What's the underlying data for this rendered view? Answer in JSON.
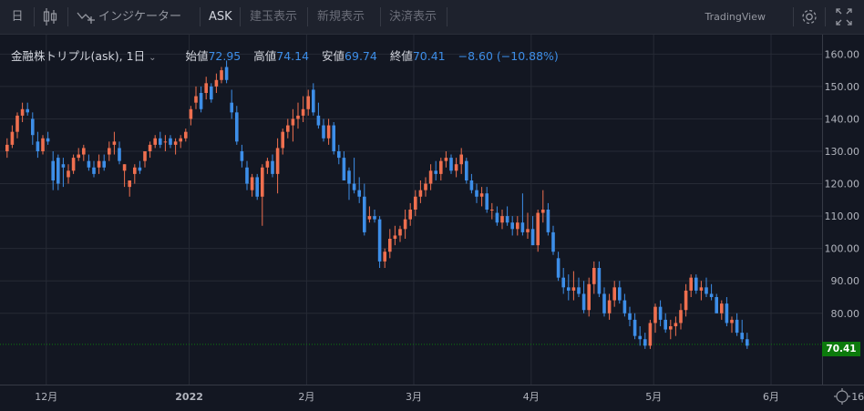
{
  "toolbar": {
    "period": "日",
    "indicators": "インジケーター",
    "ask": "ASK",
    "btn1": "建玉表示",
    "btn2": "新規表示",
    "btn3": "決済表示",
    "brand": "TradingView"
  },
  "legend": {
    "symbol": "金融株トリプル(ask), 1日",
    "open_label": "始値",
    "open": "72.95",
    "high_label": "高値",
    "high": "74.14",
    "low_label": "安値",
    "low": "69.74",
    "close_label": "終値",
    "close": "70.41",
    "change": "−8.60 (−10.88%)"
  },
  "colors": {
    "up": "#ef6f4f",
    "down": "#3d8ee8",
    "last": "#0c7a0c"
  },
  "chart_data": {
    "type": "candlestick",
    "ylim": [
      58,
      166
    ],
    "y_ticks": [
      "160.00",
      "150.00",
      "140.00",
      "130.00",
      "120.00",
      "110.00",
      "100.00",
      "90.00",
      "80.00"
    ],
    "y_tick_values": [
      160,
      150,
      140,
      130,
      120,
      110,
      100,
      90,
      80
    ],
    "x_labels": [
      {
        "text": "12月",
        "bar": 8
      },
      {
        "text": "2022",
        "bar": 36
      },
      {
        "text": "2月",
        "bar": 59
      },
      {
        "text": "3月",
        "bar": 80
      },
      {
        "text": "4月",
        "bar": 103
      },
      {
        "text": "5月",
        "bar": 127
      },
      {
        "text": "6月",
        "bar": 150
      },
      {
        "text": "16",
        "bar": 167
      }
    ],
    "last_price": "70.41",
    "last_value": 70.41,
    "candles": [
      [
        130,
        134,
        128,
        132
      ],
      [
        132,
        138,
        131,
        136
      ],
      [
        136,
        142,
        134,
        141
      ],
      [
        141,
        145,
        139,
        143
      ],
      [
        143,
        145,
        141,
        142
      ],
      [
        140,
        142,
        132,
        135
      ],
      [
        133,
        136,
        128,
        130
      ],
      [
        130,
        135,
        129,
        134
      ],
      [
        134,
        136,
        132,
        133
      ],
      [
        127,
        130,
        118,
        121
      ],
      [
        128,
        129,
        118,
        120
      ],
      [
        126,
        128,
        119,
        125
      ],
      [
        122,
        126,
        120,
        124
      ],
      [
        124,
        129,
        123,
        128
      ],
      [
        128,
        131,
        127,
        129
      ],
      [
        129,
        132,
        127,
        131
      ],
      [
        127,
        129,
        124,
        125
      ],
      [
        125,
        127,
        122,
        123
      ],
      [
        125,
        129,
        123,
        127
      ],
      [
        127,
        129,
        124,
        125
      ],
      [
        129,
        133,
        127,
        131
      ],
      [
        132,
        136,
        129,
        133
      ],
      [
        131,
        133,
        126,
        127
      ],
      [
        124,
        126,
        119,
        126
      ],
      [
        119,
        121,
        116,
        121
      ],
      [
        123,
        126,
        120,
        125
      ],
      [
        125,
        127,
        123,
        124
      ],
      [
        127,
        130,
        125,
        130
      ],
      [
        130,
        133,
        128,
        132
      ],
      [
        132,
        135,
        131,
        134
      ],
      [
        134,
        136,
        131,
        132
      ],
      [
        133,
        135,
        130,
        133
      ],
      [
        134,
        135,
        131,
        132
      ],
      [
        132,
        134,
        129,
        133
      ],
      [
        133,
        135,
        131,
        134
      ],
      [
        134,
        137,
        133,
        136
      ],
      [
        140,
        144,
        138,
        143
      ],
      [
        145,
        150,
        143,
        147
      ],
      [
        148,
        150,
        142,
        143
      ],
      [
        148,
        153,
        146,
        151
      ],
      [
        150,
        151,
        145,
        146
      ],
      [
        150,
        154,
        148,
        152
      ],
      [
        152,
        156,
        151,
        155
      ],
      [
        156,
        158,
        151,
        152
      ],
      [
        145,
        149,
        140,
        142
      ],
      [
        142,
        144,
        132,
        133
      ],
      [
        130,
        132,
        125,
        127
      ],
      [
        125,
        127,
        118,
        120
      ],
      [
        118,
        123,
        116,
        122
      ],
      [
        122,
        123,
        115,
        116
      ],
      [
        116,
        126,
        107,
        125
      ],
      [
        125,
        128,
        123,
        127
      ],
      [
        127,
        129,
        122,
        123
      ],
      [
        123,
        134,
        117,
        131
      ],
      [
        131,
        137,
        129,
        136
      ],
      [
        136,
        140,
        134,
        138
      ],
      [
        138,
        143,
        133,
        140
      ],
      [
        140,
        145,
        137,
        141
      ],
      [
        141,
        147,
        139,
        143
      ],
      [
        143,
        149,
        141,
        147
      ],
      [
        149,
        151,
        141,
        142
      ],
      [
        141,
        145,
        137,
        138
      ],
      [
        138,
        140,
        133,
        134
      ],
      [
        134,
        140,
        132,
        138
      ],
      [
        138,
        139,
        129,
        130
      ],
      [
        130,
        132,
        126,
        128
      ],
      [
        128,
        130,
        121,
        121
      ],
      [
        124,
        125,
        115,
        120
      ],
      [
        120,
        128,
        117,
        118
      ],
      [
        118,
        122,
        114,
        116
      ],
      [
        116,
        120,
        104,
        105
      ],
      [
        109,
        113,
        108,
        110
      ],
      [
        110,
        112,
        108,
        109
      ],
      [
        109,
        110,
        94,
        96
      ],
      [
        96,
        100,
        94,
        99
      ],
      [
        99,
        106,
        97,
        103
      ],
      [
        103,
        107,
        101,
        104
      ],
      [
        104,
        107,
        102,
        106
      ],
      [
        106,
        112,
        103,
        109
      ],
      [
        109,
        114,
        107,
        112
      ],
      [
        112,
        118,
        110,
        116
      ],
      [
        116,
        121,
        114,
        118
      ],
      [
        118,
        122,
        116,
        120
      ],
      [
        120,
        126,
        118,
        124
      ],
      [
        124,
        127,
        121,
        123
      ],
      [
        123,
        128,
        121,
        127
      ],
      [
        127,
        130,
        125,
        128
      ],
      [
        128,
        129,
        123,
        124
      ],
      [
        124,
        128,
        122,
        126
      ],
      [
        126,
        131,
        123,
        129
      ],
      [
        127,
        128,
        120,
        121
      ],
      [
        121,
        123,
        117,
        118
      ],
      [
        118,
        120,
        114,
        116
      ],
      [
        116,
        119,
        113,
        117
      ],
      [
        117,
        119,
        111,
        112
      ],
      [
        112,
        114,
        109,
        112
      ],
      [
        111,
        113,
        107,
        108
      ],
      [
        108,
        112,
        106,
        110
      ],
      [
        110,
        113,
        107,
        108
      ],
      [
        108,
        110,
        104,
        106
      ],
      [
        106,
        110,
        104,
        108
      ],
      [
        108,
        117,
        104,
        105
      ],
      [
        105,
        111,
        103,
        106
      ],
      [
        106,
        110,
        101,
        101
      ],
      [
        101,
        112,
        99,
        111
      ],
      [
        111,
        118,
        108,
        112
      ],
      [
        112,
        114,
        104,
        105
      ],
      [
        105,
        107,
        98,
        99
      ],
      [
        97,
        99,
        90,
        91
      ],
      [
        91,
        94,
        86,
        88
      ],
      [
        88,
        92,
        84,
        87
      ],
      [
        87,
        93,
        84,
        88
      ],
      [
        88,
        91,
        85,
        86
      ],
      [
        86,
        90,
        80,
        81
      ],
      [
        81,
        91,
        79,
        89
      ],
      [
        89,
        96,
        86,
        94
      ],
      [
        94,
        96,
        85,
        86
      ],
      [
        86,
        88,
        79,
        80
      ],
      [
        80,
        86,
        78,
        84
      ],
      [
        84,
        90,
        82,
        88
      ],
      [
        88,
        90,
        83,
        84
      ],
      [
        84,
        86,
        79,
        80
      ],
      [
        80,
        82,
        76,
        78
      ],
      [
        78,
        80,
        72,
        73
      ],
      [
        73,
        76,
        70,
        72
      ],
      [
        72,
        74,
        69,
        70
      ],
      [
        70,
        78,
        69,
        77
      ],
      [
        77,
        83,
        74,
        82
      ],
      [
        82,
        84,
        76,
        78
      ],
      [
        78,
        80,
        74,
        75
      ],
      [
        75,
        78,
        72,
        76
      ],
      [
        76,
        79,
        73,
        77
      ],
      [
        77,
        83,
        75,
        81
      ],
      [
        81,
        89,
        79,
        87
      ],
      [
        87,
        92,
        85,
        91
      ],
      [
        91,
        92,
        86,
        87
      ],
      [
        87,
        90,
        84,
        88
      ],
      [
        88,
        91,
        85,
        86
      ],
      [
        86,
        89,
        84,
        85
      ],
      [
        85,
        86,
        80,
        80
      ],
      [
        80,
        84,
        78,
        83
      ],
      [
        83,
        85,
        76,
        77
      ],
      [
        77,
        79,
        74,
        78
      ],
      [
        78,
        80,
        73,
        74
      ],
      [
        74,
        78,
        71,
        72
      ],
      [
        72,
        74,
        69,
        70
      ]
    ]
  }
}
